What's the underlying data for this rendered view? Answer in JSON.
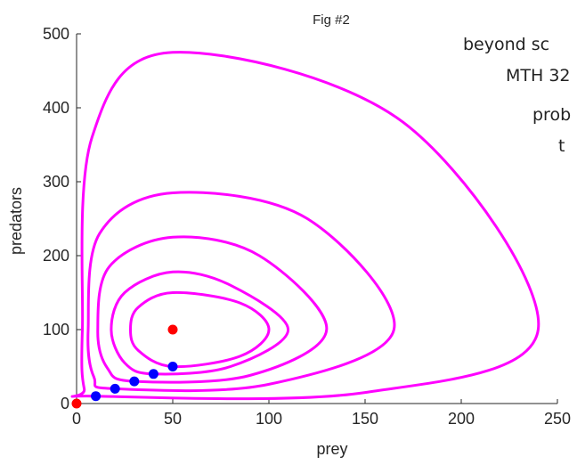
{
  "chart_data": {
    "type": "line",
    "title": "Fig #2",
    "xlabel": "prey",
    "ylabel": "predators",
    "xlim": [
      0,
      250
    ],
    "ylim": [
      0,
      500
    ],
    "xticks": [
      "0",
      "50",
      "100",
      "150",
      "200",
      "250"
    ],
    "yticks": [
      "0",
      "100",
      "200",
      "300",
      "400",
      "500"
    ],
    "grid": false,
    "equilibrium": {
      "x": 50,
      "y": 100
    },
    "origin": {
      "x": 0,
      "y": 0
    },
    "initial_points": [
      {
        "x": 10,
        "y": 10
      },
      {
        "x": 20,
        "y": 20
      },
      {
        "x": 30,
        "y": 30
      },
      {
        "x": 40,
        "y": 40
      },
      {
        "x": 50,
        "y": 50
      }
    ],
    "series": [
      {
        "values": [
          [
            50,
            50
          ],
          [
            85,
            64
          ],
          [
            100,
            100
          ],
          [
            85,
            136
          ],
          [
            50,
            150
          ],
          [
            32,
            130
          ],
          [
            28,
            100
          ],
          [
            32,
            72
          ],
          [
            50,
            50
          ]
        ]
      },
      {
        "values": [
          [
            40,
            40
          ],
          [
            80,
            50
          ],
          [
            110,
            100
          ],
          [
            80,
            160
          ],
          [
            50,
            178
          ],
          [
            25,
            150
          ],
          [
            18,
            100
          ],
          [
            25,
            55
          ],
          [
            40,
            40
          ]
        ]
      },
      {
        "values": [
          [
            30,
            30
          ],
          [
            90,
            38
          ],
          [
            130,
            100
          ],
          [
            95,
            200
          ],
          [
            50,
            225
          ],
          [
            17,
            185
          ],
          [
            11,
            100
          ],
          [
            16,
            48
          ],
          [
            30,
            30
          ]
        ]
      },
      {
        "values": [
          [
            20,
            20
          ],
          [
            100,
            26
          ],
          [
            165,
            100
          ],
          [
            120,
            250
          ],
          [
            50,
            285
          ],
          [
            12,
            230
          ],
          [
            6,
            100
          ],
          [
            9,
            36
          ],
          [
            20,
            20
          ]
        ]
      },
      {
        "values": [
          [
            10,
            10
          ],
          [
            150,
            15
          ],
          [
            240,
            100
          ],
          [
            170,
            380
          ],
          [
            50,
            475
          ],
          [
            8,
            360
          ],
          [
            3,
            100
          ],
          [
            4,
            20
          ],
          [
            10,
            10
          ]
        ]
      }
    ],
    "colors": {
      "orbit": "#ff00ff",
      "initial": "#0000ff",
      "equilibrium": "#ff0000"
    }
  },
  "note_lines": [
    "beyond  sc",
    "MTH 32",
    "prob",
    "t"
  ]
}
